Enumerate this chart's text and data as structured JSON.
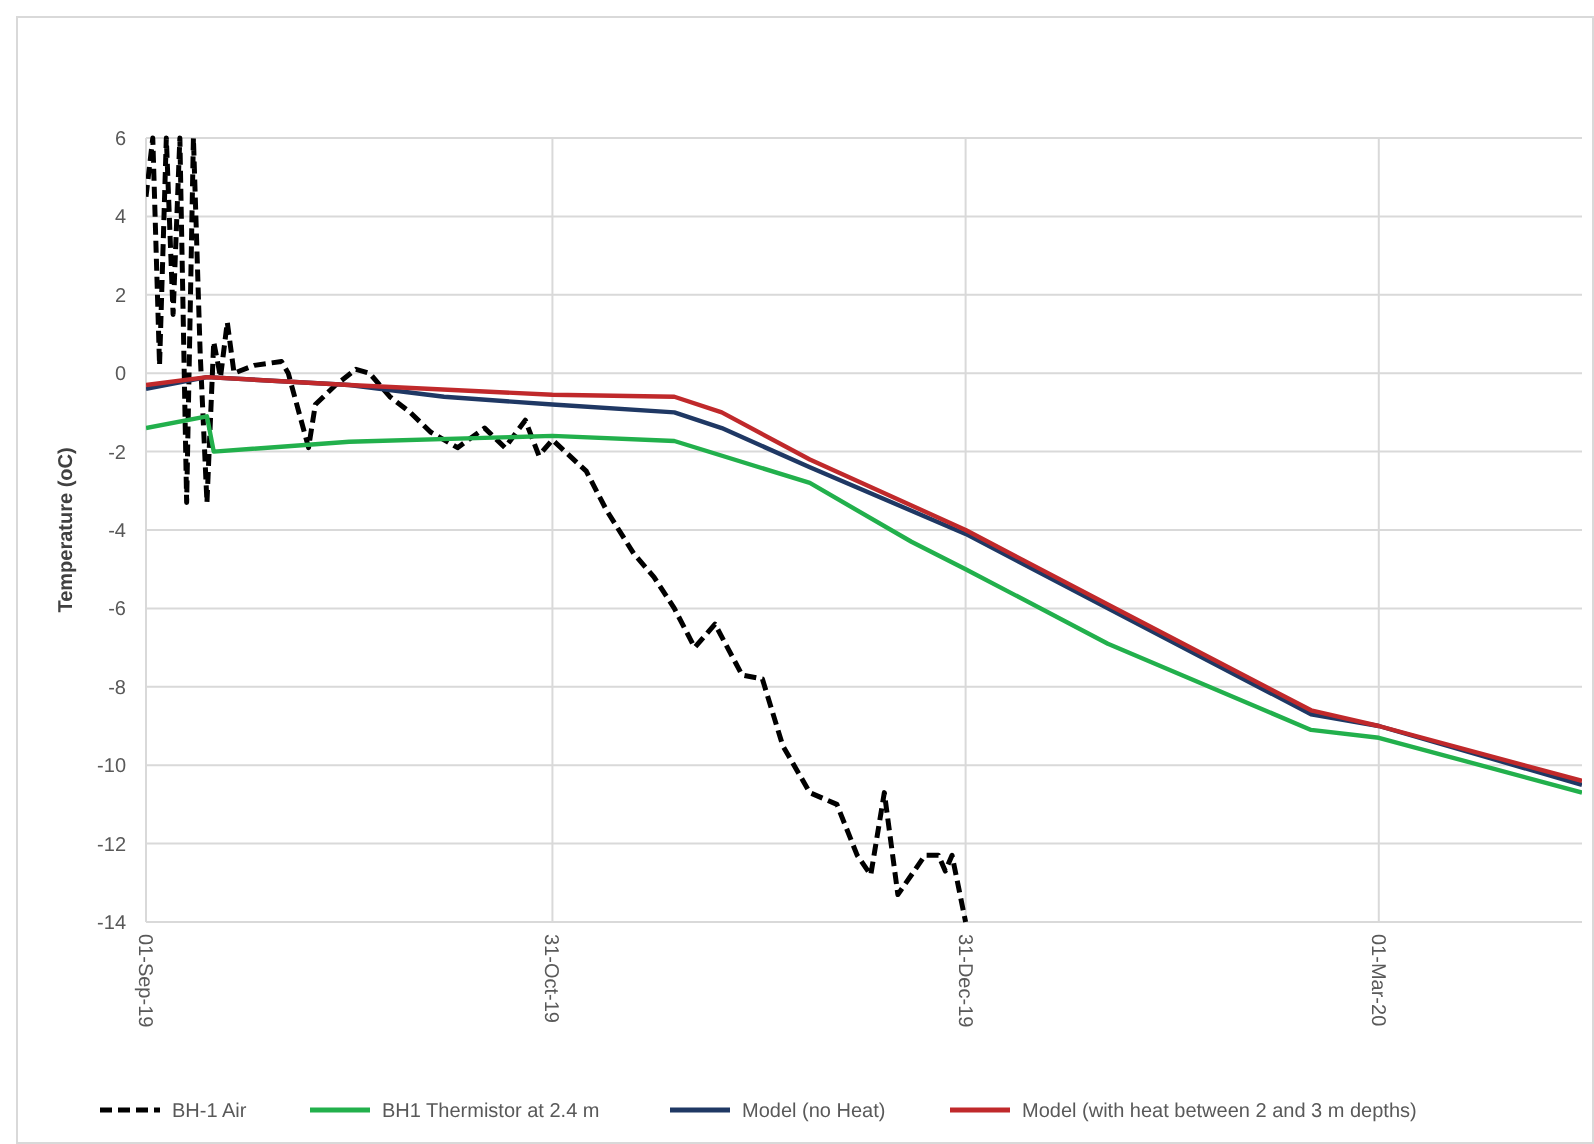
{
  "chart_data": {
    "type": "line",
    "ylabel": "Temperature (oC)",
    "xlim": [
      "2019-09-01",
      "2020-03-31"
    ],
    "xticks": [
      {
        "value": "2019-09-01",
        "label": "01-Sep-19"
      },
      {
        "value": "2019-10-31",
        "label": "31-Oct-19"
      },
      {
        "value": "2019-12-31",
        "label": "31-Dec-19"
      },
      {
        "value": "2020-03-01",
        "label": "01-Mar-20"
      }
    ],
    "ylim": [
      -14,
      6
    ],
    "yticks": [
      -14,
      -12,
      -10,
      -8,
      -6,
      -4,
      -2,
      0,
      2,
      4,
      6
    ],
    "grid": true,
    "legend": "bottom",
    "series": [
      {
        "name": "BH-1 Air",
        "color": "#000000",
        "line_style": "dashed",
        "x": [
          "2019-09-01",
          "2019-09-02",
          "2019-09-03",
          "2019-09-04",
          "2019-09-05",
          "2019-09-06",
          "2019-09-07",
          "2019-09-08",
          "2019-09-09",
          "2019-09-10",
          "2019-09-11",
          "2019-09-12",
          "2019-09-13",
          "2019-09-14",
          "2019-09-17",
          "2019-09-21",
          "2019-09-22",
          "2019-09-25",
          "2019-09-26",
          "2019-09-29",
          "2019-10-02",
          "2019-10-04",
          "2019-10-07",
          "2019-10-10",
          "2019-10-13",
          "2019-10-17",
          "2019-10-21",
          "2019-10-24",
          "2019-10-27",
          "2019-10-29",
          "2019-10-31",
          "2019-11-05",
          "2019-11-08",
          "2019-11-12",
          "2019-11-15",
          "2019-11-18",
          "2019-11-21",
          "2019-11-24",
          "2019-11-28",
          "2019-12-01",
          "2019-12-04",
          "2019-12-08",
          "2019-12-12",
          "2019-12-15",
          "2019-12-17",
          "2019-12-19",
          "2019-12-21",
          "2019-12-25",
          "2019-12-27",
          "2019-12-28",
          "2019-12-29",
          "2019-12-31"
        ],
        "values": [
          4.5,
          6,
          0.2,
          6,
          1.5,
          6,
          -3.3,
          6,
          0.5,
          -3.3,
          0.8,
          -0.1,
          1.3,
          0,
          0.2,
          0.3,
          0,
          -1.9,
          -0.8,
          -0.3,
          0.1,
          0,
          -0.6,
          -1,
          -1.5,
          -1.9,
          -1.4,
          -1.9,
          -1.2,
          -2.1,
          -1.7,
          -2.5,
          -3.5,
          -4.6,
          -5.2,
          -6,
          -7,
          -6.4,
          -7.7,
          -7.8,
          -9.5,
          -10.7,
          -11,
          -12.3,
          -12.8,
          -10.7,
          -13.3,
          -12.3,
          -12.3,
          -12.7,
          -12.3,
          -14
        ]
      },
      {
        "name": "BH1 Thermistor at 2.4 m",
        "color": "#22b04c",
        "line_style": "solid",
        "x": [
          "2019-09-01",
          "2019-09-10",
          "2019-09-11",
          "2019-10-01",
          "2019-10-31",
          "2019-11-18",
          "2019-12-08",
          "2019-12-23",
          "2019-12-31",
          "2020-01-21",
          "2020-02-20",
          "2020-03-01",
          "2020-03-31"
        ],
        "values": [
          -1.4,
          -1.1,
          -2,
          -1.75,
          -1.6,
          -1.73,
          -2.8,
          -4.3,
          -5,
          -6.9,
          -9.1,
          -9.3,
          -10.7
        ]
      },
      {
        "name": "Model (no Heat)",
        "color": "#1f3864",
        "line_style": "solid",
        "x": [
          "2019-09-01",
          "2019-09-10",
          "2019-10-01",
          "2019-10-15",
          "2019-10-31",
          "2019-11-18",
          "2019-11-25",
          "2019-12-08",
          "2019-12-31",
          "2020-01-21",
          "2020-02-20",
          "2020-03-01",
          "2020-03-31"
        ],
        "values": [
          -0.4,
          -0.1,
          -0.3,
          -0.6,
          -0.8,
          -1,
          -1.4,
          -2.4,
          -4.1,
          -6,
          -8.7,
          -9,
          -10.5
        ]
      },
      {
        "name": "Model (with heat between 2 and 3 m depths)",
        "color": "#c0292b",
        "line_style": "solid",
        "x": [
          "2019-09-01",
          "2019-09-10",
          "2019-10-01",
          "2019-10-31",
          "2019-11-18",
          "2019-11-25",
          "2019-12-08",
          "2019-12-31",
          "2020-01-21",
          "2020-02-20",
          "2020-03-01",
          "2020-03-31"
        ],
        "values": [
          -0.3,
          -0.1,
          -0.3,
          -0.55,
          -0.6,
          -1,
          -2.2,
          -4,
          -5.9,
          -8.6,
          -9,
          -10.4
        ]
      }
    ]
  }
}
